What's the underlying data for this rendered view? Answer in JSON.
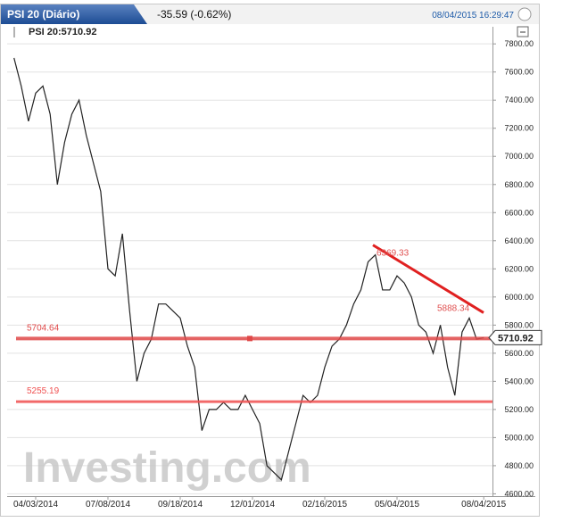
{
  "header": {
    "title": "PSI 20 (Diário)",
    "change": "-35.59 (-0.62%)",
    "datetime": "08/04/2015 16:29:47"
  },
  "chart_data": {
    "type": "line",
    "indicator_label": "PSI 20:5710.92",
    "watermark": "Investing.com",
    "categories": [
      null,
      null,
      null,
      "04/03/2014",
      null,
      null,
      null,
      null,
      null,
      null,
      null,
      null,
      null,
      "07/08/2014",
      null,
      null,
      null,
      null,
      null,
      null,
      null,
      null,
      null,
      "09/18/2014",
      null,
      null,
      null,
      null,
      null,
      null,
      null,
      null,
      null,
      "12/01/2014",
      null,
      null,
      null,
      null,
      null,
      null,
      null,
      null,
      null,
      "02/16/2015",
      null,
      null,
      null,
      null,
      null,
      null,
      null,
      null,
      null,
      "05/04/2015",
      null,
      null,
      null,
      null,
      null,
      null,
      null,
      null,
      null,
      null,
      null,
      "08/04/2015"
    ],
    "series": [
      {
        "name": "PSI 20",
        "color": "#222222",
        "values": [
          7700,
          7500,
          7250,
          7450,
          7500,
          7300,
          6800,
          7100,
          7300,
          7400,
          7150,
          6950,
          6750,
          6200,
          6150,
          6450,
          5900,
          5400,
          5600,
          5700,
          5950,
          5950,
          5900,
          5850,
          5650,
          5500,
          5050,
          5200,
          5200,
          5250,
          5200,
          5200,
          5300,
          5200,
          5100,
          4800,
          4750,
          4700,
          4900,
          5100,
          5300,
          5250,
          5300,
          5500,
          5650,
          5700,
          5800,
          5950,
          6050,
          6250,
          6300,
          6050,
          6050,
          6150,
          6100,
          6000,
          5800,
          5750,
          5600,
          5800,
          5500,
          5300,
          5750,
          5850,
          5700,
          5710.92
        ]
      }
    ],
    "levels": [
      {
        "value": 5704.64,
        "color": "#e04848"
      },
      {
        "value": 5255.19,
        "color": "#f05050"
      }
    ],
    "trendline": {
      "values": [
        6369.33,
        5888.34
      ],
      "color": "#e02020"
    },
    "ylim": [
      4590,
      7890
    ],
    "yticks": [
      {
        "value": 4600,
        "label": "4600.00"
      },
      {
        "value": 4800,
        "label": "4800.00"
      },
      {
        "value": 5000,
        "label": "5000.00"
      },
      {
        "value": 5200,
        "label": "5200.00"
      },
      {
        "value": 5400,
        "label": "5400.00"
      },
      {
        "value": 5600,
        "label": "5600.00"
      },
      {
        "value": 5800,
        "label": "5800.00"
      },
      {
        "value": 6000,
        "label": "6000.00"
      },
      {
        "value": 6200,
        "label": "6200.00"
      },
      {
        "value": 6400,
        "label": "6400.00"
      },
      {
        "value": 6600,
        "label": "6600.00"
      },
      {
        "value": 6800,
        "label": "6800.00"
      },
      {
        "value": 7000,
        "label": "7000.00"
      },
      {
        "value": 7200,
        "label": "7200.00"
      },
      {
        "value": 7400,
        "label": "7400.00"
      },
      {
        "value": 7600,
        "label": "7600.00"
      },
      {
        "value": 7800,
        "label": "7800.00"
      }
    ],
    "grid": true
  }
}
